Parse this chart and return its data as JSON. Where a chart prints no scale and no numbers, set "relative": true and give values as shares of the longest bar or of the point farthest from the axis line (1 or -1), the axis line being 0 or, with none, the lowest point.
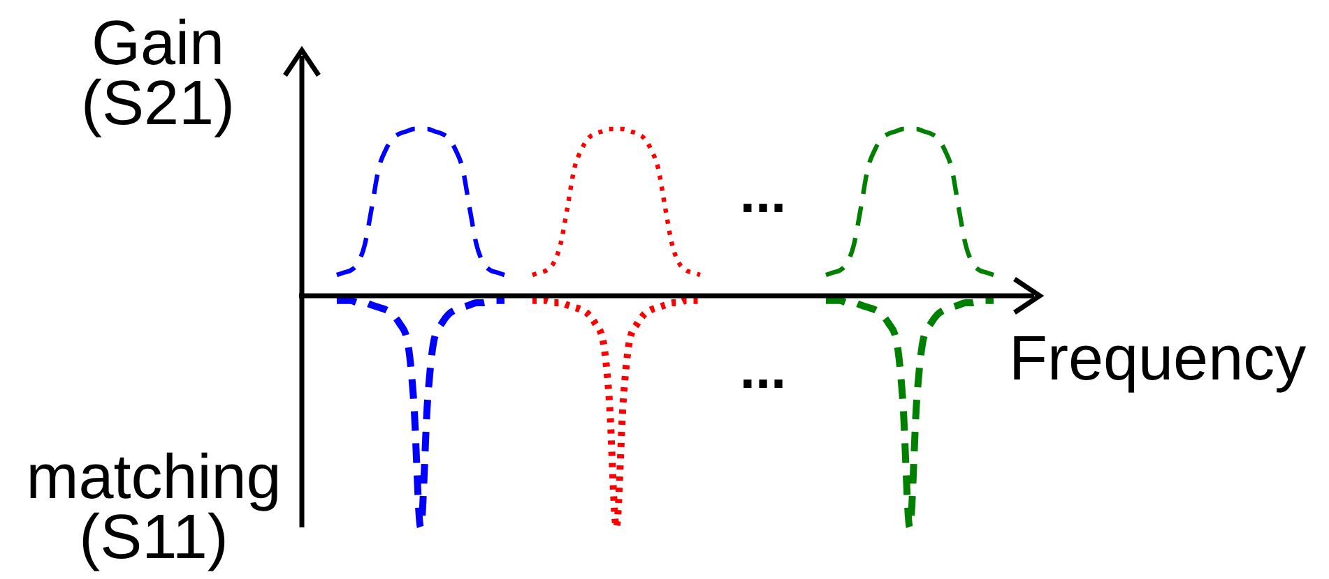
{
  "chart_data": {
    "type": "line",
    "relative": true,
    "ylabel": "Gain (S21)",
    "xlabel": "Frequency",
    "annotations": [
      "matching (S11)",
      "...",
      "..."
    ],
    "categories": [
      null,
      null,
      null,
      null,
      null,
      null,
      null,
      null,
      null,
      null,
      null,
      null,
      null,
      null,
      null,
      null,
      null,
      null,
      null,
      null,
      null,
      null,
      null,
      null,
      null,
      null,
      null,
      null,
      null,
      null,
      null,
      null,
      null,
      null,
      null,
      null,
      null,
      null,
      null,
      null,
      null,
      null,
      null,
      null,
      null,
      null,
      null,
      null,
      null,
      null,
      null,
      null,
      null,
      null,
      null,
      null,
      null,
      null,
      null,
      null,
      null,
      null,
      null,
      null,
      null,
      null,
      null,
      null,
      null,
      null,
      null,
      null,
      null,
      null,
      null,
      null,
      null,
      null,
      null,
      null,
      null,
      null,
      null,
      null,
      null,
      null,
      null,
      null,
      null,
      null,
      null,
      null,
      null,
      null,
      null,
      null,
      null,
      null,
      null,
      null,
      null,
      null,
      null
    ],
    "series": [
      {
        "color": "#0000ff",
        "line_style": "dashed",
        "values": [
          null,
          null,
          null,
          0.09,
          0.1,
          0.11,
          0.14,
          0.22,
          0.38,
          0.55,
          0.63,
          0.68,
          0.7,
          0.71,
          0.72,
          0.72,
          0.72,
          0.71,
          0.7,
          0.68,
          0.63,
          0.55,
          0.38,
          0.22,
          0.14,
          0.11,
          0.1,
          0.09,
          null,
          null,
          null,
          null,
          null,
          null,
          null,
          null,
          null,
          null,
          null,
          null,
          null,
          null,
          null,
          null,
          null,
          null,
          null,
          null,
          null,
          null,
          null,
          null,
          null,
          null,
          null,
          null,
          null,
          null,
          null,
          null,
          null,
          null,
          null,
          null,
          null,
          null,
          null,
          null,
          null,
          null,
          null,
          null,
          null,
          null,
          null,
          null,
          null,
          null,
          null,
          null,
          null,
          null,
          null,
          null,
          null,
          null,
          null,
          null,
          null,
          null,
          null,
          null,
          null,
          null,
          null,
          null,
          null,
          null,
          null,
          null,
          null,
          null,
          null
        ]
      },
      {
        "color": "#0000ff",
        "line_style": "dashed",
        "values": [
          null,
          null,
          null,
          -0.02,
          -0.02,
          -0.02,
          -0.03,
          -0.03,
          -0.04,
          -0.05,
          -0.06,
          -0.08,
          -0.12,
          -0.18,
          -0.45,
          -1,
          -0.45,
          -0.18,
          -0.12,
          -0.08,
          -0.06,
          -0.05,
          -0.04,
          -0.03,
          -0.03,
          -0.02,
          -0.02,
          -0.02,
          null,
          null,
          null,
          null,
          null,
          null,
          null,
          null,
          null,
          null,
          null,
          null,
          null,
          null,
          null,
          null,
          null,
          null,
          null,
          null,
          null,
          null,
          null,
          null,
          null,
          null,
          null,
          null,
          null,
          null,
          null,
          null,
          null,
          null,
          null,
          null,
          null,
          null,
          null,
          null,
          null,
          null,
          null,
          null,
          null,
          null,
          null,
          null,
          null,
          null,
          null,
          null,
          null,
          null,
          null,
          null,
          null,
          null,
          null,
          null,
          null,
          null,
          null,
          null,
          null,
          null,
          null,
          null,
          null,
          null,
          null,
          null,
          null,
          null,
          null
        ]
      },
      {
        "color": "#ff0000",
        "line_style": "dotted",
        "values": [
          null,
          null,
          null,
          null,
          null,
          null,
          null,
          null,
          null,
          null,
          null,
          null,
          null,
          null,
          null,
          null,
          null,
          null,
          null,
          null,
          null,
          null,
          null,
          null,
          null,
          null,
          null,
          null,
          null,
          null,
          null,
          0.09,
          0.1,
          0.11,
          0.14,
          0.22,
          0.38,
          0.55,
          0.63,
          0.68,
          0.7,
          0.71,
          0.72,
          0.72,
          0.72,
          0.71,
          0.7,
          0.68,
          0.63,
          0.55,
          0.38,
          0.22,
          0.14,
          0.11,
          0.1,
          0.09,
          null,
          null,
          null,
          null,
          null,
          null,
          null,
          null,
          null,
          null,
          null,
          null,
          null,
          null,
          null,
          null,
          null,
          null,
          null,
          null,
          null,
          null,
          null,
          null,
          null,
          null,
          null,
          null,
          null,
          null,
          null,
          null,
          null,
          null,
          null,
          null,
          null,
          null,
          null,
          null,
          null,
          null,
          null,
          null,
          null,
          null,
          null
        ]
      },
      {
        "color": "#ff0000",
        "line_style": "dotted",
        "values": [
          null,
          null,
          null,
          null,
          null,
          null,
          null,
          null,
          null,
          null,
          null,
          null,
          null,
          null,
          null,
          null,
          null,
          null,
          null,
          null,
          null,
          null,
          null,
          null,
          null,
          null,
          null,
          null,
          null,
          null,
          null,
          -0.02,
          -0.02,
          -0.02,
          -0.03,
          -0.03,
          -0.04,
          -0.05,
          -0.06,
          -0.08,
          -0.12,
          -0.18,
          -0.45,
          -1,
          -0.45,
          -0.18,
          -0.12,
          -0.08,
          -0.06,
          -0.05,
          -0.04,
          -0.03,
          -0.03,
          -0.02,
          -0.02,
          -0.02,
          null,
          null,
          null,
          null,
          null,
          null,
          null,
          null,
          null,
          null,
          null,
          null,
          null,
          null,
          null,
          null,
          null,
          null,
          null,
          null,
          null,
          null,
          null,
          null,
          null,
          null,
          null,
          null,
          null,
          null,
          null,
          null,
          null,
          null,
          null,
          null,
          null,
          null,
          null,
          null,
          null,
          null,
          null,
          null,
          null,
          null,
          null
        ]
      },
      {
        "color": "#008000",
        "line_style": "dashed",
        "values": [
          null,
          null,
          null,
          null,
          null,
          null,
          null,
          null,
          null,
          null,
          null,
          null,
          null,
          null,
          null,
          null,
          null,
          null,
          null,
          null,
          null,
          null,
          null,
          null,
          null,
          null,
          null,
          null,
          null,
          null,
          null,
          null,
          null,
          null,
          null,
          null,
          null,
          null,
          null,
          null,
          null,
          null,
          null,
          null,
          null,
          null,
          null,
          null,
          null,
          null,
          null,
          null,
          null,
          null,
          null,
          null,
          null,
          null,
          null,
          null,
          null,
          null,
          null,
          null,
          null,
          null,
          null,
          null,
          null,
          null,
          null,
          null,
          null,
          0.09,
          0.1,
          0.11,
          0.14,
          0.22,
          0.38,
          0.55,
          0.63,
          0.68,
          0.7,
          0.71,
          0.72,
          0.72,
          0.72,
          0.71,
          0.7,
          0.68,
          0.63,
          0.55,
          0.38,
          0.22,
          0.14,
          0.11,
          0.1,
          0.09,
          null,
          null,
          null,
          null,
          null
        ]
      },
      {
        "color": "#008000",
        "line_style": "dashed",
        "values": [
          null,
          null,
          null,
          null,
          null,
          null,
          null,
          null,
          null,
          null,
          null,
          null,
          null,
          null,
          null,
          null,
          null,
          null,
          null,
          null,
          null,
          null,
          null,
          null,
          null,
          null,
          null,
          null,
          null,
          null,
          null,
          null,
          null,
          null,
          null,
          null,
          null,
          null,
          null,
          null,
          null,
          null,
          null,
          null,
          null,
          null,
          null,
          null,
          null,
          null,
          null,
          null,
          null,
          null,
          null,
          null,
          null,
          null,
          null,
          null,
          null,
          null,
          null,
          null,
          null,
          null,
          null,
          null,
          null,
          null,
          null,
          null,
          null,
          -0.02,
          -0.02,
          -0.02,
          -0.03,
          -0.03,
          -0.04,
          -0.05,
          -0.06,
          -0.08,
          -0.12,
          -0.18,
          -0.45,
          -1,
          -0.45,
          -0.18,
          -0.12,
          -0.08,
          -0.06,
          -0.05,
          -0.04,
          -0.03,
          -0.03,
          -0.02,
          -0.02,
          -0.02,
          null,
          null,
          null,
          null,
          null
        ]
      }
    ]
  }
}
